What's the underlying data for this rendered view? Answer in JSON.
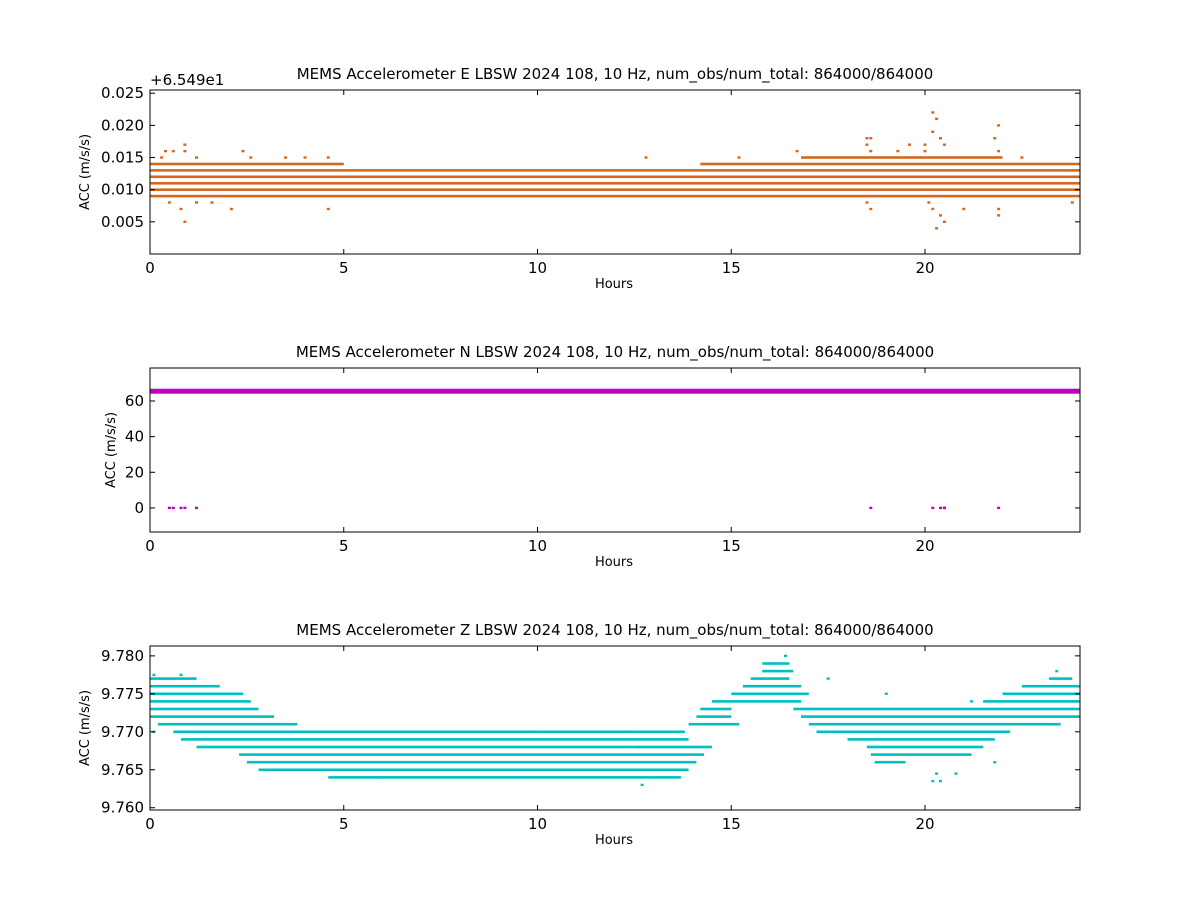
{
  "chart_data": [
    {
      "type": "scatter",
      "title": "MEMS Accelerometer E LBSW 2024 108, 10 Hz, num_obs/num_total: 864000/864000",
      "xlabel": "Hours",
      "ylabel": "ACC (m/s/s)",
      "offset_text": "+6.549e1",
      "xlim": [
        0,
        24
      ],
      "ylim": [
        0.0,
        0.0255
      ],
      "x_ticks": [
        0,
        5,
        10,
        15,
        20
      ],
      "x_tick_labels": [
        "0",
        "5",
        "10",
        "15",
        "20"
      ],
      "y_ticks": [
        0.005,
        0.01,
        0.015,
        0.02,
        0.025
      ],
      "y_tick_labels": [
        "0.005",
        "0.010",
        "0.015",
        "0.020",
        "0.025"
      ],
      "color": "#d2691e",
      "dense_bands": [
        {
          "y": 0.009,
          "x_start": 0,
          "x_end": 24
        },
        {
          "y": 0.01,
          "x_start": 0,
          "x_end": 24
        },
        {
          "y": 0.011,
          "x_start": 0,
          "x_end": 24
        },
        {
          "y": 0.012,
          "x_start": 0,
          "x_end": 24
        },
        {
          "y": 0.013,
          "x_start": 0,
          "x_end": 24
        },
        {
          "y": 0.014,
          "x_start": 0,
          "x_end": 5.0
        },
        {
          "y": 0.014,
          "x_start": 14.2,
          "x_end": 24
        },
        {
          "y": 0.015,
          "x_start": 16.8,
          "x_end": 22.0
        }
      ],
      "sparse_points": [
        [
          0.4,
          0.016
        ],
        [
          0.6,
          0.016
        ],
        [
          0.9,
          0.017
        ],
        [
          0.9,
          0.016
        ],
        [
          1.2,
          0.015
        ],
        [
          0.3,
          0.015
        ],
        [
          0.5,
          0.008
        ],
        [
          0.8,
          0.007
        ],
        [
          0.9,
          0.005
        ],
        [
          1.2,
          0.008
        ],
        [
          1.6,
          0.008
        ],
        [
          2.1,
          0.007
        ],
        [
          2.4,
          0.016
        ],
        [
          2.6,
          0.015
        ],
        [
          3.5,
          0.015
        ],
        [
          4.0,
          0.015
        ],
        [
          4.6,
          0.015
        ],
        [
          4.6,
          0.007
        ],
        [
          12.8,
          0.015
        ],
        [
          15.2,
          0.015
        ],
        [
          16.7,
          0.016
        ],
        [
          18.5,
          0.018
        ],
        [
          18.6,
          0.018
        ],
        [
          18.5,
          0.017
        ],
        [
          18.6,
          0.016
        ],
        [
          18.5,
          0.008
        ],
        [
          18.6,
          0.007
        ],
        [
          19.3,
          0.016
        ],
        [
          19.6,
          0.017
        ],
        [
          20.0,
          0.017
        ],
        [
          20.2,
          0.022
        ],
        [
          20.3,
          0.021
        ],
        [
          20.2,
          0.019
        ],
        [
          20.4,
          0.018
        ],
        [
          20.5,
          0.017
        ],
        [
          20.0,
          0.016
        ],
        [
          20.1,
          0.008
        ],
        [
          20.2,
          0.007
        ],
        [
          20.3,
          0.004
        ],
        [
          20.4,
          0.006
        ],
        [
          20.5,
          0.005
        ],
        [
          21.0,
          0.007
        ],
        [
          21.9,
          0.02
        ],
        [
          21.8,
          0.018
        ],
        [
          21.9,
          0.016
        ],
        [
          21.9,
          0.007
        ],
        [
          21.9,
          0.006
        ],
        [
          22.5,
          0.015
        ],
        [
          23.8,
          0.008
        ]
      ]
    },
    {
      "type": "scatter",
      "title": "MEMS Accelerometer N LBSW 2024 108, 10 Hz, num_obs/num_total: 864000/864000",
      "xlabel": "Hours",
      "ylabel": "ACC (m/s/s)",
      "xlim": [
        0,
        24
      ],
      "ylim": [
        -13.5,
        78.5
      ],
      "x_ticks": [
        0,
        5,
        10,
        15,
        20
      ],
      "x_tick_labels": [
        "0",
        "5",
        "10",
        "15",
        "20"
      ],
      "y_ticks": [
        0,
        20,
        40,
        60
      ],
      "y_tick_labels": [
        "0",
        "20",
        "40",
        "60"
      ],
      "color": "#bf00bf",
      "dense_bands": [
        {
          "y": 65.5,
          "x_start": 0,
          "x_end": 24
        }
      ],
      "sparse_points": [
        [
          0.5,
          0
        ],
        [
          0.6,
          0
        ],
        [
          0.8,
          0
        ],
        [
          0.9,
          0
        ],
        [
          1.2,
          0
        ],
        [
          18.6,
          0
        ],
        [
          20.2,
          0
        ],
        [
          20.4,
          0
        ],
        [
          20.5,
          0
        ],
        [
          20.5,
          0
        ],
        [
          21.9,
          0
        ]
      ]
    },
    {
      "type": "scatter",
      "title": "MEMS Accelerometer Z LBSW 2024 108, 10 Hz, num_obs/num_total: 864000/864000",
      "xlabel": "Hours",
      "ylabel": "ACC (m/s/s)",
      "xlim": [
        0,
        24
      ],
      "ylim": [
        9.7597,
        9.7813
      ],
      "x_ticks": [
        0,
        5,
        10,
        15,
        20
      ],
      "x_tick_labels": [
        "0",
        "5",
        "10",
        "15",
        "20"
      ],
      "y_ticks": [
        9.76,
        9.765,
        9.77,
        9.775,
        9.78
      ],
      "y_tick_labels": [
        "9.760",
        "9.765",
        "9.770",
        "9.775",
        "9.780"
      ],
      "color": "#00bfbf",
      "dense_bands": [
        {
          "y": 9.777,
          "x_start": 0.0,
          "x_end": 1.2
        },
        {
          "y": 9.776,
          "x_start": 0.0,
          "x_end": 1.8
        },
        {
          "y": 9.775,
          "x_start": 0.0,
          "x_end": 2.4
        },
        {
          "y": 9.774,
          "x_start": 0.0,
          "x_end": 2.6
        },
        {
          "y": 9.773,
          "x_start": 0.0,
          "x_end": 2.8
        },
        {
          "y": 9.772,
          "x_start": 0.0,
          "x_end": 3.2
        },
        {
          "y": 9.771,
          "x_start": 0.2,
          "x_end": 3.8
        },
        {
          "y": 9.77,
          "x_start": 0.6,
          "x_end": 13.8
        },
        {
          "y": 9.769,
          "x_start": 0.8,
          "x_end": 13.9
        },
        {
          "y": 9.768,
          "x_start": 1.2,
          "x_end": 14.5
        },
        {
          "y": 9.767,
          "x_start": 2.3,
          "x_end": 14.3
        },
        {
          "y": 9.766,
          "x_start": 2.5,
          "x_end": 14.1
        },
        {
          "y": 9.765,
          "x_start": 2.8,
          "x_end": 13.9
        },
        {
          "y": 9.764,
          "x_start": 4.6,
          "x_end": 13.7
        },
        {
          "y": 9.771,
          "x_start": 13.9,
          "x_end": 15.2
        },
        {
          "y": 9.772,
          "x_start": 14.1,
          "x_end": 15.0
        },
        {
          "y": 9.773,
          "x_start": 14.2,
          "x_end": 15.0
        },
        {
          "y": 9.774,
          "x_start": 14.5,
          "x_end": 16.8
        },
        {
          "y": 9.775,
          "x_start": 15.0,
          "x_end": 17.0
        },
        {
          "y": 9.776,
          "x_start": 15.3,
          "x_end": 16.8
        },
        {
          "y": 9.777,
          "x_start": 15.5,
          "x_end": 16.5
        },
        {
          "y": 9.778,
          "x_start": 15.8,
          "x_end": 16.6
        },
        {
          "y": 9.779,
          "x_start": 15.8,
          "x_end": 16.5
        },
        {
          "y": 9.773,
          "x_start": 16.6,
          "x_end": 24.0
        },
        {
          "y": 9.772,
          "x_start": 16.8,
          "x_end": 24.0
        },
        {
          "y": 9.771,
          "x_start": 17.0,
          "x_end": 23.5
        },
        {
          "y": 9.77,
          "x_start": 17.2,
          "x_end": 22.2
        },
        {
          "y": 9.769,
          "x_start": 18.0,
          "x_end": 21.8
        },
        {
          "y": 9.768,
          "x_start": 18.5,
          "x_end": 21.5
        },
        {
          "y": 9.767,
          "x_start": 18.6,
          "x_end": 21.2
        },
        {
          "y": 9.766,
          "x_start": 18.7,
          "x_end": 19.5
        },
        {
          "y": 9.774,
          "x_start": 21.5,
          "x_end": 24.0
        },
        {
          "y": 9.775,
          "x_start": 22.0,
          "x_end": 24.0
        },
        {
          "y": 9.776,
          "x_start": 22.5,
          "x_end": 24.0
        },
        {
          "y": 9.777,
          "x_start": 23.2,
          "x_end": 23.8
        }
      ],
      "sparse_points": [
        [
          0.1,
          9.7775
        ],
        [
          0.8,
          9.7775
        ],
        [
          0.1,
          9.77
        ],
        [
          10.2,
          9.77
        ],
        [
          12.6,
          9.77
        ],
        [
          12.6,
          9.768
        ],
        [
          6.0,
          9.764
        ],
        [
          7.5,
          9.764
        ],
        [
          9.5,
          9.764
        ],
        [
          12.7,
          9.763
        ],
        [
          16.4,
          9.78
        ],
        [
          17.5,
          9.777
        ],
        [
          19.0,
          9.775
        ],
        [
          20.3,
          9.7645
        ],
        [
          20.2,
          9.7635
        ],
        [
          20.4,
          9.7635
        ],
        [
          20.8,
          9.7645
        ],
        [
          21.8,
          9.766
        ],
        [
          23.4,
          9.778
        ],
        [
          21.2,
          9.774
        ]
      ]
    }
  ]
}
